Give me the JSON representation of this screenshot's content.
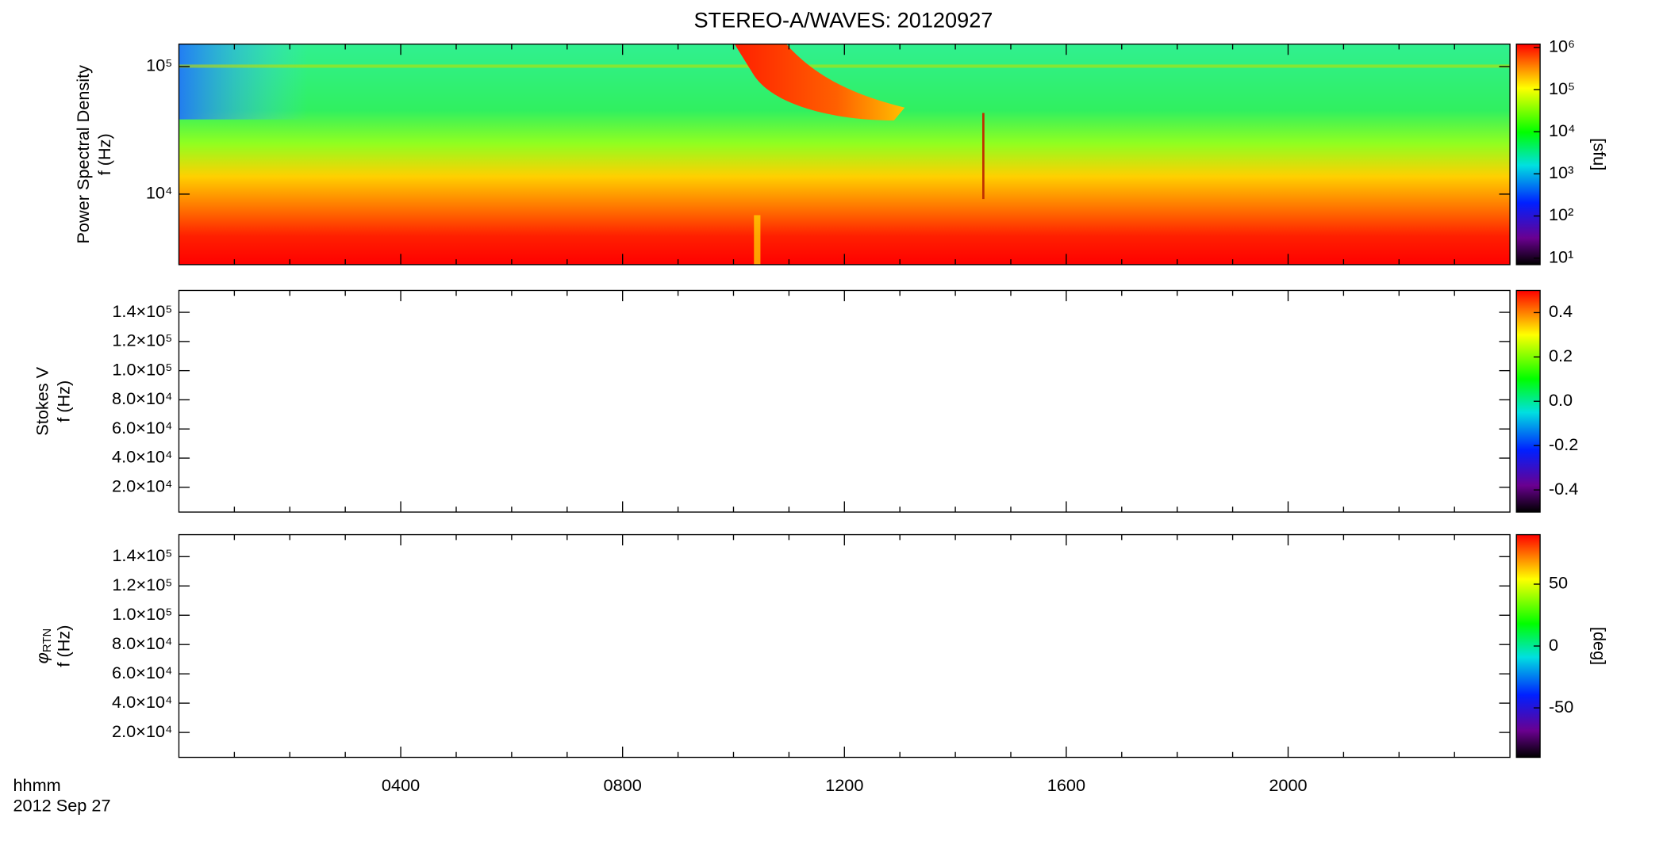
{
  "title": "STEREO-A/WAVES: 20120927",
  "x_axis": {
    "label": "hhmm",
    "date": "2012 Sep 27",
    "xlim": [
      0,
      24
    ],
    "xticks": [
      {
        "value": 4,
        "label": "0400"
      },
      {
        "value": 8,
        "label": "0800"
      },
      {
        "value": 12,
        "label": "1200"
      },
      {
        "value": 16,
        "label": "1600"
      },
      {
        "value": 20,
        "label": "2000"
      }
    ],
    "minor_ticks": [
      1,
      2,
      3,
      5,
      6,
      7,
      9,
      10,
      11,
      13,
      14,
      15,
      17,
      18,
      19,
      21,
      22,
      23
    ]
  },
  "panels": [
    {
      "type": "spectrogram",
      "ylabel": "Power Spectral Density",
      "ylabel2": "f (Hz)",
      "log_y": true,
      "ylim": [
        2800,
        150000
      ],
      "yticks": [
        {
          "value": 10000,
          "label": "10⁴"
        },
        {
          "value": 100000,
          "label": "10⁵"
        }
      ],
      "colorbar": {
        "label": "[sfu]",
        "log": true,
        "lim": [
          7,
          1200000
        ],
        "ticks": [
          {
            "value": 10,
            "label": "10¹"
          },
          {
            "value": 100,
            "label": "10²"
          },
          {
            "value": 1000,
            "label": "10³"
          },
          {
            "value": 10000,
            "label": "10⁴"
          },
          {
            "value": 100000,
            "label": "10⁵"
          },
          {
            "value": 1000000,
            "label": "10⁶"
          }
        ]
      }
    },
    {
      "type": "spectrogram",
      "ylabel": "Stokes V",
      "ylabel2": "f (Hz)",
      "log_y": false,
      "ylim": [
        3000,
        155000
      ],
      "yticks": [
        {
          "value": 20000,
          "label": "2.0×10⁴"
        },
        {
          "value": 40000,
          "label": "4.0×10⁴"
        },
        {
          "value": 60000,
          "label": "6.0×10⁴"
        },
        {
          "value": 80000,
          "label": "8.0×10⁴"
        },
        {
          "value": 100000,
          "label": "1.0×10⁵"
        },
        {
          "value": 120000,
          "label": "1.2×10⁵"
        },
        {
          "value": 140000,
          "label": "1.4×10⁵"
        }
      ],
      "colorbar": {
        "log": false,
        "lim": [
          -0.5,
          0.5
        ],
        "ticks": [
          -0.4,
          -0.2,
          {
            "value": 0,
            "label": "0.0"
          },
          0.2,
          0.4
        ]
      }
    },
    {
      "type": "spectrogram",
      "ylabel": "φ",
      "ylabel_sub": "RTN",
      "ylabel2": "f (Hz)",
      "log_y": false,
      "ylim": [
        3000,
        155000
      ],
      "yticks": [
        {
          "value": 20000,
          "label": "2.0×10⁴"
        },
        {
          "value": 40000,
          "label": "4.0×10⁴"
        },
        {
          "value": 60000,
          "label": "6.0×10⁴"
        },
        {
          "value": 80000,
          "label": "8.0×10⁴"
        },
        {
          "value": 100000,
          "label": "1.0×10⁵"
        },
        {
          "value": 120000,
          "label": "1.2×10⁵"
        },
        {
          "value": 140000,
          "label": "1.4×10⁵"
        }
      ],
      "colorbar": {
        "label": "[deg]",
        "log": false,
        "lim": [
          -90,
          90
        ],
        "ticks": [
          -50,
          0,
          50
        ]
      }
    }
  ]
}
